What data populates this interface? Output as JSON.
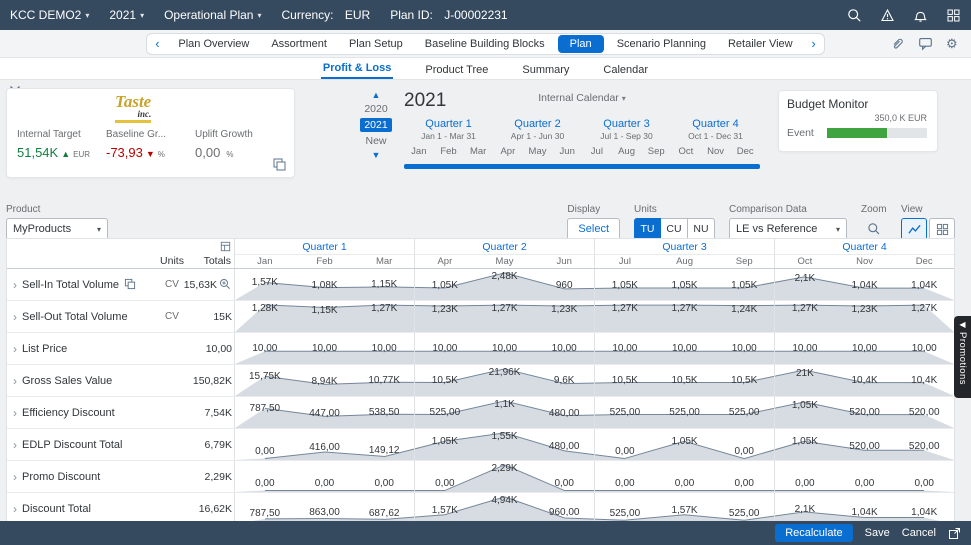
{
  "shell": {
    "app": "KCC DEMO2",
    "year": "2021",
    "plan_type": "Operational Plan",
    "currency_label": "Currency:",
    "currency": "EUR",
    "plan_id_label": "Plan ID:",
    "plan_id": "J-00002231"
  },
  "nav": {
    "tabs": [
      "Plan Overview",
      "Assortment",
      "Plan Setup",
      "Baseline Building Blocks",
      "Plan",
      "Scenario Planning",
      "Retailer View"
    ],
    "active_tab": "Plan"
  },
  "subtabs": [
    "Profit & Loss",
    "Product Tree",
    "Summary",
    "Calendar"
  ],
  "kpi_card": {
    "logo_line1": "Taste",
    "logo_line2": "inc.",
    "kpis": [
      {
        "label": "Internal Target",
        "value": "51,54K",
        "unit": "EUR",
        "trend": "up",
        "color": "#107e3e"
      },
      {
        "label": "Baseline Gr...",
        "value": "-73,93",
        "unit": "%",
        "trend": "down",
        "color": "#bb0000"
      },
      {
        "label": "Uplift Growth",
        "value": "0,00",
        "unit": "%",
        "trend": "none",
        "color": "#6a6d70"
      }
    ]
  },
  "timeline": {
    "years": [
      "2020",
      "2021",
      "New"
    ],
    "selected_year": "2021",
    "big_year": "2021",
    "calendar_label": "Internal Calendar",
    "quarters": [
      {
        "label": "Quarter 1",
        "range": "Jan 1 - Mar 31"
      },
      {
        "label": "Quarter 2",
        "range": "Apr 1 - Jun 30"
      },
      {
        "label": "Quarter 3",
        "range": "Jul 1 - Sep 30"
      },
      {
        "label": "Quarter 4",
        "range": "Oct 1 - Dec 31"
      }
    ],
    "months": [
      "Jan",
      "Feb",
      "Mar",
      "Apr",
      "May",
      "Jun",
      "Jul",
      "Aug",
      "Sep",
      "Oct",
      "Nov",
      "Dec"
    ]
  },
  "budget": {
    "title": "Budget Monitor",
    "event_label": "Event",
    "value": "350,0 K EUR",
    "fill_pct": 60,
    "fill_color": "#3fa43f"
  },
  "toolbar": {
    "product_label": "Product",
    "product_value": "MyProducts",
    "display_label": "Display",
    "select_button": "Select",
    "units_label": "Units",
    "unit_options": [
      "TU",
      "CU",
      "NU"
    ],
    "unit_selected": "TU",
    "comparison_label": "Comparison Data",
    "comparison_value": "LE vs Reference",
    "zoom_label": "Zoom",
    "view_label": "View"
  },
  "table": {
    "units_header": "Units",
    "totals_header": "Totals",
    "quarters": [
      "Quarter 1",
      "Quarter 2",
      "Quarter 3",
      "Quarter 4"
    ],
    "months": [
      "Jan",
      "Feb",
      "Mar",
      "Apr",
      "May",
      "Jun",
      "Jul",
      "Aug",
      "Sep",
      "Oct",
      "Nov",
      "Dec"
    ],
    "rows": [
      {
        "label": "Sell-In Total Volume",
        "units": "CV",
        "total": "15,63K",
        "row_icons": [
          "copy"
        ],
        "total_icon": "zoom-in",
        "values": [
          1570,
          1080,
          1150,
          1050,
          2480,
          960,
          1050,
          1050,
          1050,
          2100,
          1040,
          1040
        ],
        "cells": [
          "1,57K",
          "1,08K",
          "1,15K",
          "1,05K",
          "2,48K",
          "960",
          "1,05K",
          "1,05K",
          "1,05K",
          "2,1K",
          "1,04K",
          "1,04K"
        ]
      },
      {
        "label": "Sell-Out Total Volume",
        "units": "CV",
        "total": "15K",
        "values": [
          1280,
          1150,
          1270,
          1230,
          1270,
          1230,
          1270,
          1270,
          1240,
          1270,
          1230,
          1270
        ],
        "cells": [
          "1,28K",
          "1,15K",
          "1,27K",
          "1,23K",
          "1,27K",
          "1,23K",
          "1,27K",
          "1,27K",
          "1,24K",
          "1,27K",
          "1,23K",
          "1,27K"
        ]
      },
      {
        "label": "List Price",
        "units": "",
        "total": "10,00",
        "values": [
          10,
          10,
          10,
          10,
          10,
          10,
          10,
          10,
          10,
          10,
          10,
          10
        ],
        "cells": [
          "10,00",
          "10,00",
          "10,00",
          "10,00",
          "10,00",
          "10,00",
          "10,00",
          "10,00",
          "10,00",
          "10,00",
          "10,00",
          "10,00"
        ]
      },
      {
        "label": "Gross Sales Value",
        "units": "",
        "total": "150,82K",
        "values": [
          15750,
          8940,
          10770,
          10500,
          21960,
          9600,
          10500,
          10500,
          10500,
          21000,
          10400,
          10400
        ],
        "cells": [
          "15,75K",
          "8,94K",
          "10,77K",
          "10,5K",
          "21,96K",
          "9,6K",
          "10,5K",
          "10,5K",
          "10,5K",
          "21K",
          "10,4K",
          "10,4K"
        ]
      },
      {
        "label": "Efficiency Discount",
        "units": "",
        "total": "7,54K",
        "values": [
          787.5,
          447,
          538.5,
          525,
          1100,
          480,
          525,
          525,
          525,
          1050,
          520,
          520
        ],
        "cells": [
          "787,50",
          "447,00",
          "538,50",
          "525,00",
          "1,1K",
          "480,00",
          "525,00",
          "525,00",
          "525,00",
          "1,05K",
          "520,00",
          "520,00"
        ]
      },
      {
        "label": "EDLP Discount Total",
        "units": "",
        "total": "6,79K",
        "values": [
          0,
          416,
          149.12,
          1050,
          1550,
          480,
          0,
          1050,
          0,
          1050,
          520,
          520
        ],
        "cells": [
          "0,00",
          "416,00",
          "149,12",
          "1,05K",
          "1,55K",
          "480,00",
          "0,00",
          "1,05K",
          "0,00",
          "1,05K",
          "520,00",
          "520,00"
        ]
      },
      {
        "label": "Promo Discount",
        "units": "",
        "total": "2,29K",
        "values": [
          0,
          0,
          0,
          0,
          2290,
          0,
          0,
          0,
          0,
          0,
          0,
          0
        ],
        "cells": [
          "0,00",
          "0,00",
          "0,00",
          "0,00",
          "2,29K",
          "0,00",
          "0,00",
          "0,00",
          "0,00",
          "0,00",
          "0,00",
          "0,00"
        ]
      },
      {
        "label": "Discount Total",
        "units": "",
        "total": "16,62K",
        "values": [
          787.5,
          863,
          687.62,
          1570,
          4940,
          960,
          525,
          1570,
          525,
          2100,
          1040,
          1040
        ],
        "cells": [
          "787,50",
          "863,00",
          "687,62",
          "1,57K",
          "4,94K",
          "960,00",
          "525,00",
          "1,57K",
          "525,00",
          "2,1K",
          "1,04K",
          "1,04K"
        ]
      }
    ]
  },
  "promotions_tab": {
    "label": "Promotions"
  },
  "footer": {
    "recalculate": "Recalculate",
    "save": "Save",
    "cancel": "Cancel"
  },
  "colors": {
    "accent_blue": "#0a6ed1",
    "shell": "#354a5f",
    "positive": "#107e3e",
    "negative": "#bb0000"
  }
}
